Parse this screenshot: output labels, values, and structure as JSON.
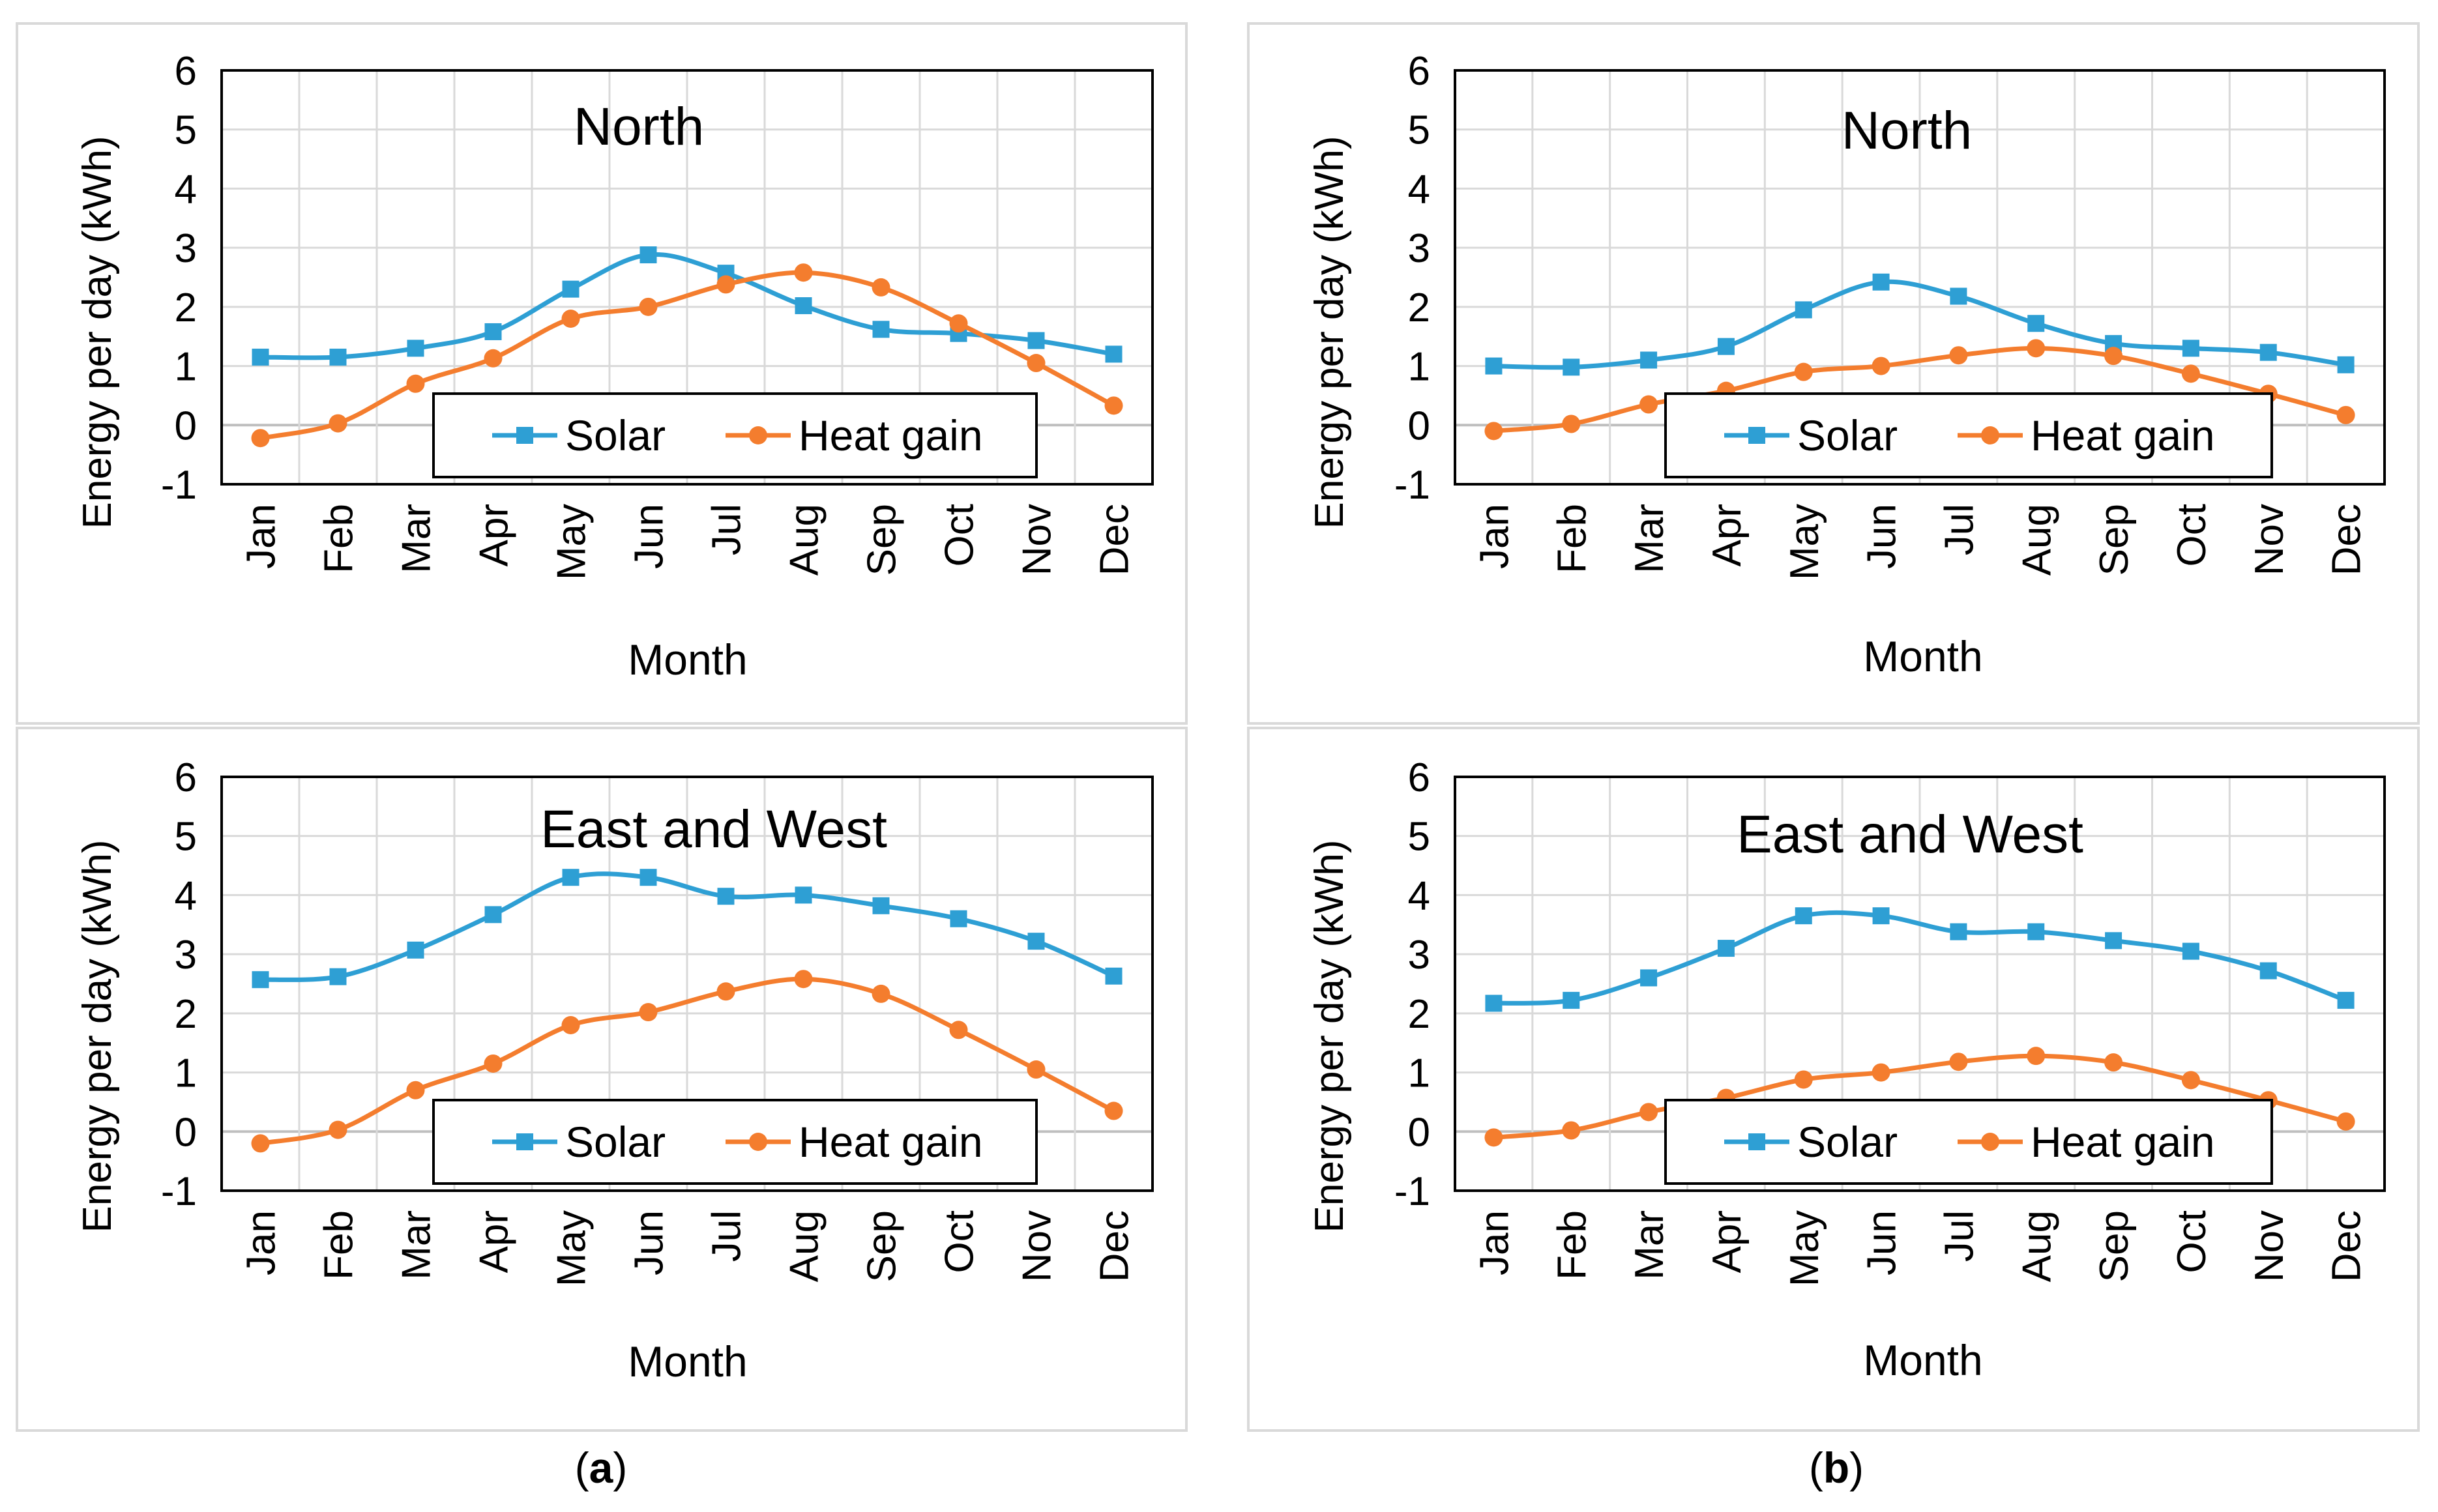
{
  "colors": {
    "solar": "#2E9FD4",
    "heat_gain": "#F47D2E",
    "grid": "#D9D9D9",
    "axis": "#000000",
    "panel_border": "#D9D9D9"
  },
  "panel_labels": {
    "a": {
      "open": "(",
      "letter": "a",
      "close": ")"
    },
    "b": {
      "open": "(",
      "letter": "b",
      "close": ")"
    }
  },
  "chart_data": [
    {
      "id": "a-north",
      "type": "line",
      "title": "North",
      "xlabel": "Month",
      "ylabel": "Energy per day (kWh)",
      "ylim": [
        -1,
        6
      ],
      "yticks": [
        "6",
        "5",
        "4",
        "3",
        "2",
        "1",
        "0",
        "-1"
      ],
      "categories": [
        "Jan",
        "Feb",
        "Mar",
        "Apr",
        "May",
        "Jun",
        "Jul",
        "Aug",
        "Sep",
        "Oct",
        "Nov",
        "Dec"
      ],
      "legend": {
        "placement": "bottom-center",
        "entries": [
          "Solar",
          "Heat gain"
        ]
      },
      "series": [
        {
          "name": "Solar",
          "marker": "square",
          "values": [
            1.15,
            1.15,
            1.3,
            1.58,
            2.3,
            2.88,
            2.57,
            2.02,
            1.62,
            1.55,
            1.43,
            1.2
          ]
        },
        {
          "name": "Heat gain",
          "marker": "circle",
          "values": [
            -0.22,
            0.03,
            0.7,
            1.13,
            1.8,
            2.0,
            2.38,
            2.58,
            2.33,
            1.72,
            1.05,
            0.33
          ]
        }
      ]
    },
    {
      "id": "b-north",
      "type": "line",
      "title": "North",
      "xlabel": "Month",
      "ylabel": "Energy per day (kWh)",
      "ylim": [
        -1,
        6
      ],
      "yticks": [
        "6",
        "5",
        "4",
        "3",
        "2",
        "1",
        "0",
        "-1"
      ],
      "categories": [
        "Jan",
        "Feb",
        "Mar",
        "Apr",
        "May",
        "Jun",
        "Jul",
        "Aug",
        "Sep",
        "Oct",
        "Nov",
        "Dec"
      ],
      "legend": {
        "placement": "bottom-center",
        "entries": [
          "Solar",
          "Heat gain"
        ]
      },
      "series": [
        {
          "name": "Solar",
          "marker": "square",
          "values": [
            1.0,
            0.98,
            1.1,
            1.33,
            1.95,
            2.42,
            2.18,
            1.72,
            1.38,
            1.3,
            1.23,
            1.02
          ]
        },
        {
          "name": "Heat gain",
          "marker": "circle",
          "values": [
            -0.1,
            0.02,
            0.35,
            0.58,
            0.9,
            1.0,
            1.18,
            1.3,
            1.17,
            0.87,
            0.53,
            0.17
          ]
        }
      ]
    },
    {
      "id": "a-east-west",
      "type": "line",
      "title": "East and West",
      "xlabel": "Month",
      "ylabel": "Energy per day (kWh)",
      "ylim": [
        -1,
        6
      ],
      "yticks": [
        "6",
        "5",
        "4",
        "3",
        "2",
        "1",
        "0",
        "-1"
      ],
      "categories": [
        "Jan",
        "Feb",
        "Mar",
        "Apr",
        "May",
        "Jun",
        "Jul",
        "Aug",
        "Sep",
        "Oct",
        "Nov",
        "Dec"
      ],
      "legend": {
        "placement": "bottom-center",
        "entries": [
          "Solar",
          "Heat gain"
        ]
      },
      "series": [
        {
          "name": "Solar",
          "marker": "square",
          "values": [
            2.57,
            2.62,
            3.07,
            3.67,
            4.3,
            4.3,
            3.98,
            4.0,
            3.82,
            3.6,
            3.22,
            2.63
          ]
        },
        {
          "name": "Heat gain",
          "marker": "circle",
          "values": [
            -0.2,
            0.03,
            0.7,
            1.15,
            1.8,
            2.02,
            2.37,
            2.58,
            2.33,
            1.72,
            1.05,
            0.35
          ]
        }
      ]
    },
    {
      "id": "b-east-west",
      "type": "line",
      "title": "East and West",
      "xlabel": "Month",
      "ylabel": "Energy per day (kWh)",
      "ylim": [
        -1,
        6
      ],
      "yticks": [
        "6",
        "5",
        "4",
        "3",
        "2",
        "1",
        "0",
        "-1"
      ],
      "categories": [
        "Jan",
        "Feb",
        "Mar",
        "Apr",
        "May",
        "Jun",
        "Jul",
        "Aug",
        "Sep",
        "Oct",
        "Nov",
        "Dec"
      ],
      "legend": {
        "placement": "bottom-center",
        "entries": [
          "Solar",
          "Heat gain"
        ]
      },
      "series": [
        {
          "name": "Solar",
          "marker": "square",
          "values": [
            2.17,
            2.22,
            2.6,
            3.1,
            3.65,
            3.65,
            3.38,
            3.38,
            3.23,
            3.05,
            2.72,
            2.22
          ]
        },
        {
          "name": "Heat gain",
          "marker": "circle",
          "values": [
            -0.1,
            0.02,
            0.33,
            0.57,
            0.88,
            1.0,
            1.18,
            1.28,
            1.17,
            0.87,
            0.53,
            0.17
          ]
        }
      ]
    }
  ]
}
